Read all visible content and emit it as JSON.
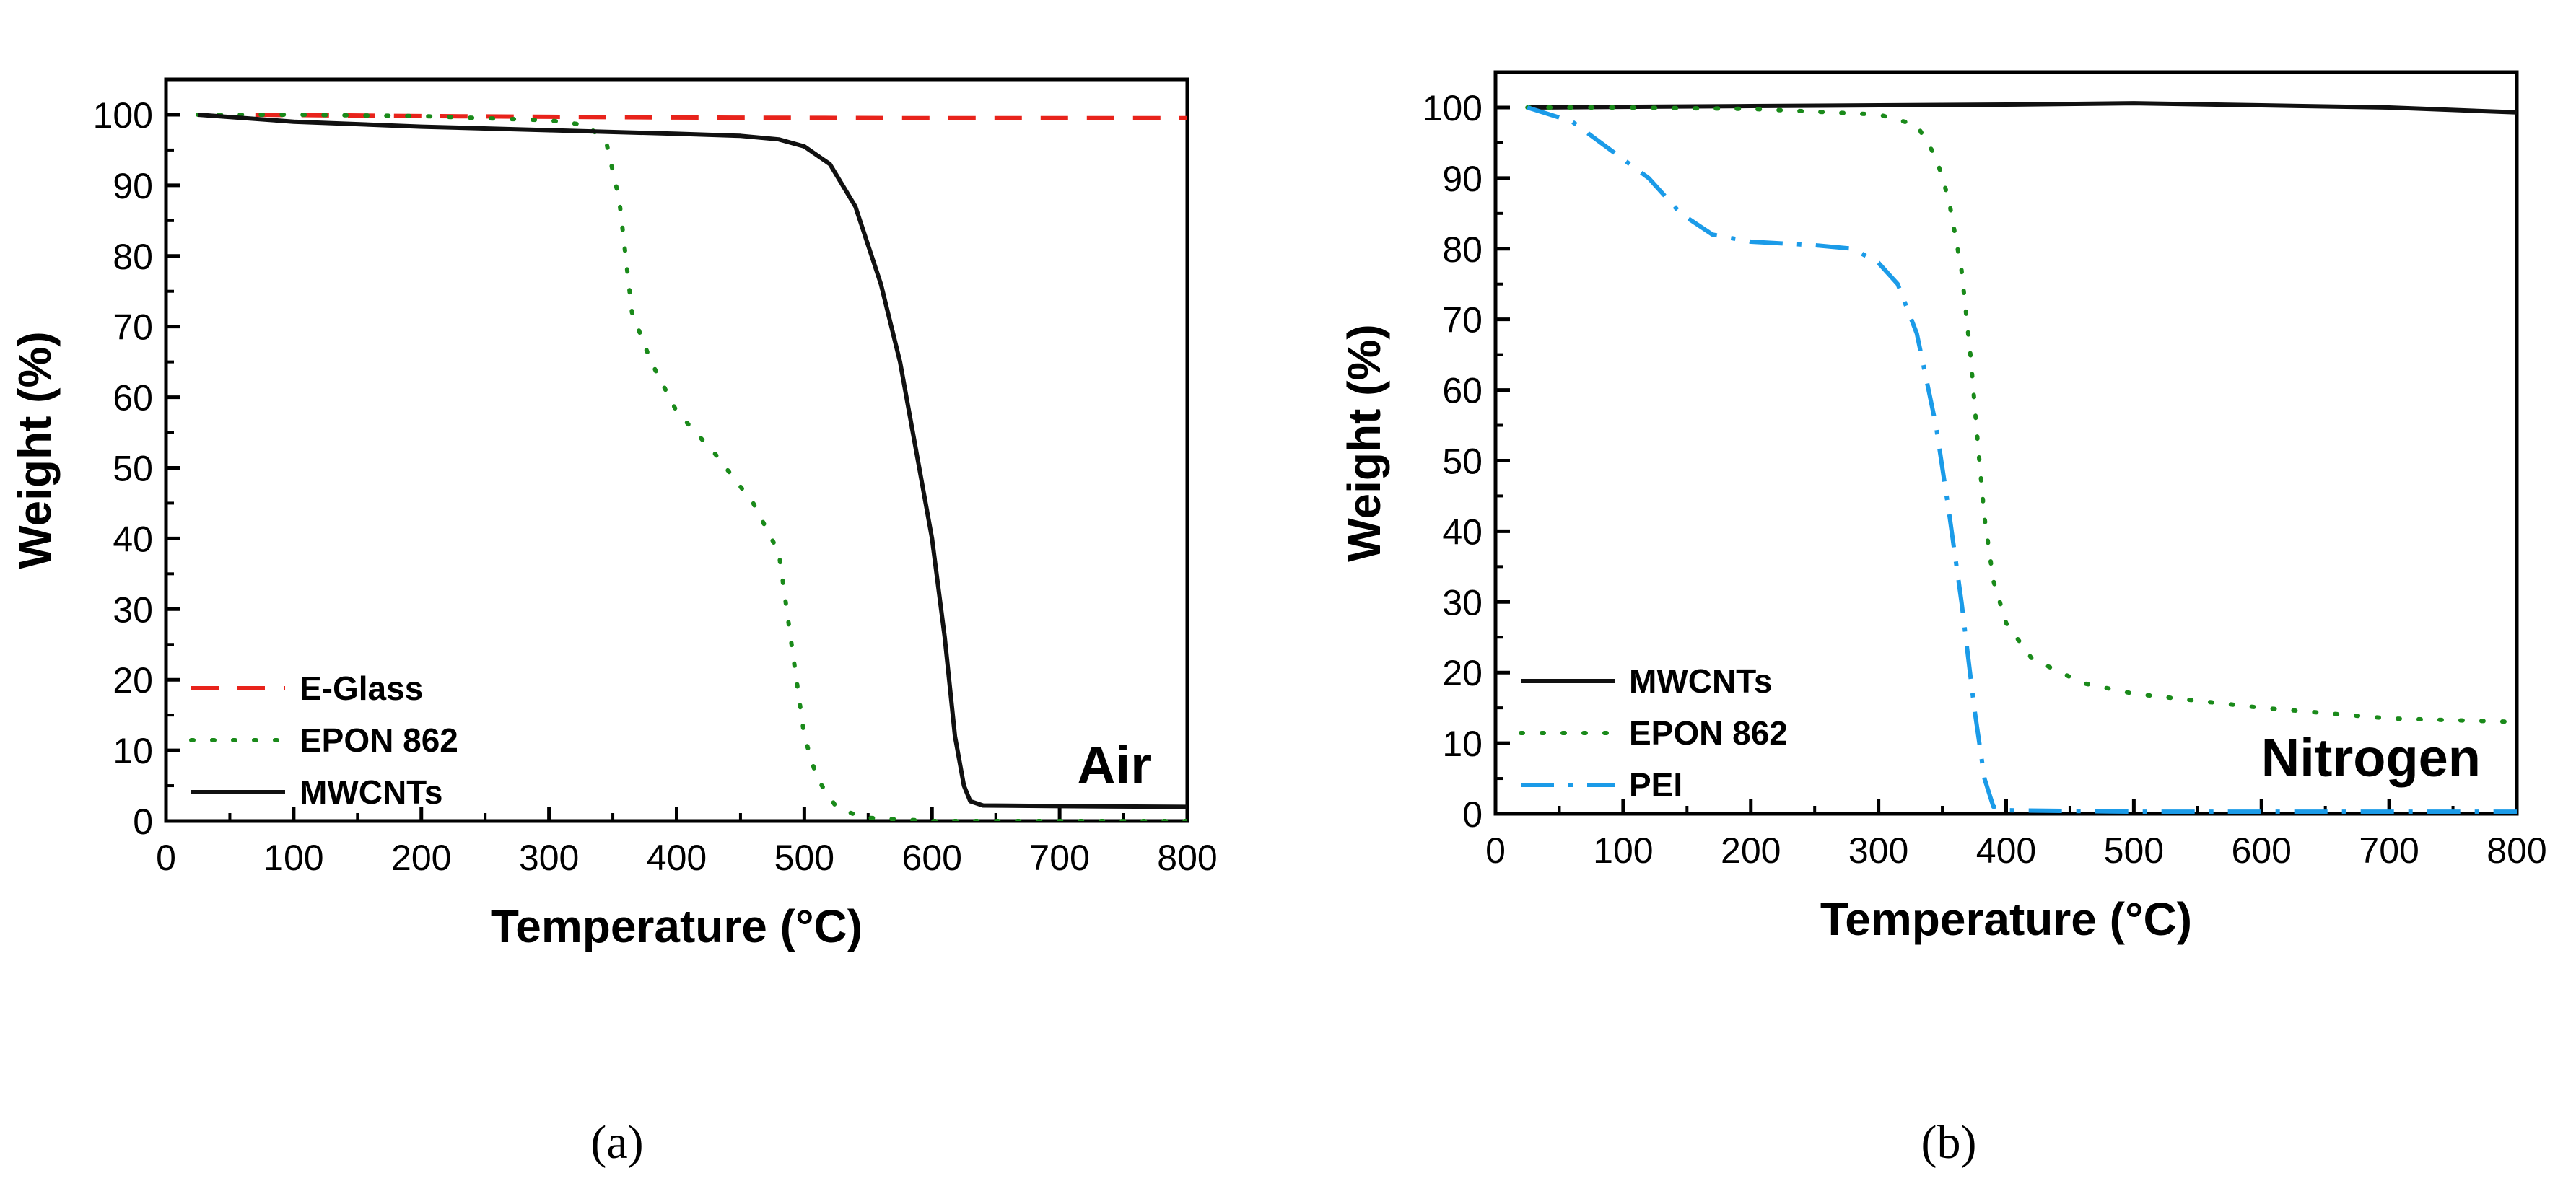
{
  "chart_data": [
    {
      "type": "line",
      "panel_label": "(a)",
      "annotation": "Air",
      "xlabel": "Temperature (°C)",
      "ylabel": "Weight (%)",
      "xlim": [
        0,
        800
      ],
      "ylim": [
        0,
        105
      ],
      "xticks": [
        0,
        100,
        200,
        300,
        400,
        500,
        600,
        700,
        800
      ],
      "yticks": [
        0,
        10,
        20,
        30,
        40,
        50,
        60,
        70,
        80,
        90,
        100
      ],
      "legend_position": "bottom-left",
      "grid": false,
      "series": [
        {
          "name": "E-Glass",
          "color": "#e8231b",
          "style": "dashed",
          "points": [
            [
              70,
              100
            ],
            [
              200,
              99.8
            ],
            [
              400,
              99.6
            ],
            [
              600,
              99.5
            ],
            [
              800,
              99.5
            ]
          ]
        },
        {
          "name": "EPON 862",
          "color": "#1a8a1a",
          "style": "dotted",
          "points": [
            [
              25,
              100
            ],
            [
              100,
              100
            ],
            [
              200,
              99.8
            ],
            [
              300,
              99.2
            ],
            [
              330,
              98.5
            ],
            [
              345,
              96
            ],
            [
              355,
              88
            ],
            [
              365,
              72
            ],
            [
              380,
              65
            ],
            [
              400,
              58
            ],
            [
              430,
              52
            ],
            [
              460,
              45
            ],
            [
              480,
              38
            ],
            [
              490,
              25
            ],
            [
              500,
              12
            ],
            [
              510,
              6
            ],
            [
              525,
              2
            ],
            [
              545,
              0.5
            ],
            [
              600,
              0
            ],
            [
              800,
              0
            ]
          ]
        },
        {
          "name": "MWCNTs",
          "color": "#111111",
          "style": "solid",
          "points": [
            [
              25,
              100
            ],
            [
              100,
              99
            ],
            [
              200,
              98.3
            ],
            [
              300,
              97.8
            ],
            [
              400,
              97.3
            ],
            [
              450,
              97
            ],
            [
              480,
              96.5
            ],
            [
              500,
              95.5
            ],
            [
              520,
              93
            ],
            [
              540,
              87
            ],
            [
              560,
              76
            ],
            [
              575,
              65
            ],
            [
              590,
              50
            ],
            [
              600,
              40
            ],
            [
              610,
              26
            ],
            [
              618,
              12
            ],
            [
              625,
              5
            ],
            [
              630,
              2.8
            ],
            [
              640,
              2.2
            ],
            [
              700,
              2.1
            ],
            [
              800,
              2
            ]
          ]
        }
      ]
    },
    {
      "type": "line",
      "panel_label": "(b)",
      "annotation": "Nitrogen",
      "xlabel": "Temperature (°C)",
      "ylabel": "Weight (%)",
      "xlim": [
        0,
        800
      ],
      "ylim": [
        0,
        105
      ],
      "xticks": [
        0,
        100,
        200,
        300,
        400,
        500,
        600,
        700,
        800
      ],
      "yticks": [
        0,
        10,
        20,
        30,
        40,
        50,
        60,
        70,
        80,
        90,
        100
      ],
      "legend_position": "bottom-left",
      "grid": false,
      "series": [
        {
          "name": "MWCNTs",
          "color": "#111111",
          "style": "solid",
          "points": [
            [
              25,
              100
            ],
            [
              200,
              100.2
            ],
            [
              400,
              100.4
            ],
            [
              500,
              100.6
            ],
            [
              600,
              100.3
            ],
            [
              700,
              100
            ],
            [
              800,
              99.3
            ]
          ]
        },
        {
          "name": "EPON 862",
          "color": "#1a8a1a",
          "style": "dotted",
          "points": [
            [
              25,
              100
            ],
            [
              100,
              100
            ],
            [
              200,
              99.8
            ],
            [
              300,
              99
            ],
            [
              330,
              97.5
            ],
            [
              345,
              93
            ],
            [
              355,
              87
            ],
            [
              365,
              77
            ],
            [
              372,
              65
            ],
            [
              378,
              52
            ],
            [
              383,
              42
            ],
            [
              390,
              33
            ],
            [
              400,
              27
            ],
            [
              420,
              22
            ],
            [
              460,
              18.5
            ],
            [
              500,
              17
            ],
            [
              600,
              15
            ],
            [
              700,
              13.5
            ],
            [
              800,
              13
            ]
          ]
        },
        {
          "name": "PEI",
          "color": "#1b9be8",
          "style": "dashdot",
          "points": [
            [
              25,
              100
            ],
            [
              60,
              98
            ],
            [
              90,
              94
            ],
            [
              120,
              90
            ],
            [
              145,
              85
            ],
            [
              170,
              82
            ],
            [
              200,
              81
            ],
            [
              250,
              80.5
            ],
            [
              280,
              80
            ],
            [
              300,
              78
            ],
            [
              315,
              75
            ],
            [
              330,
              68
            ],
            [
              345,
              55
            ],
            [
              355,
              43
            ],
            [
              365,
              30
            ],
            [
              375,
              15
            ],
            [
              383,
              5
            ],
            [
              390,
              1
            ],
            [
              400,
              0.5
            ],
            [
              500,
              0.3
            ],
            [
              600,
              0.3
            ],
            [
              800,
              0.3
            ]
          ]
        }
      ]
    }
  ]
}
